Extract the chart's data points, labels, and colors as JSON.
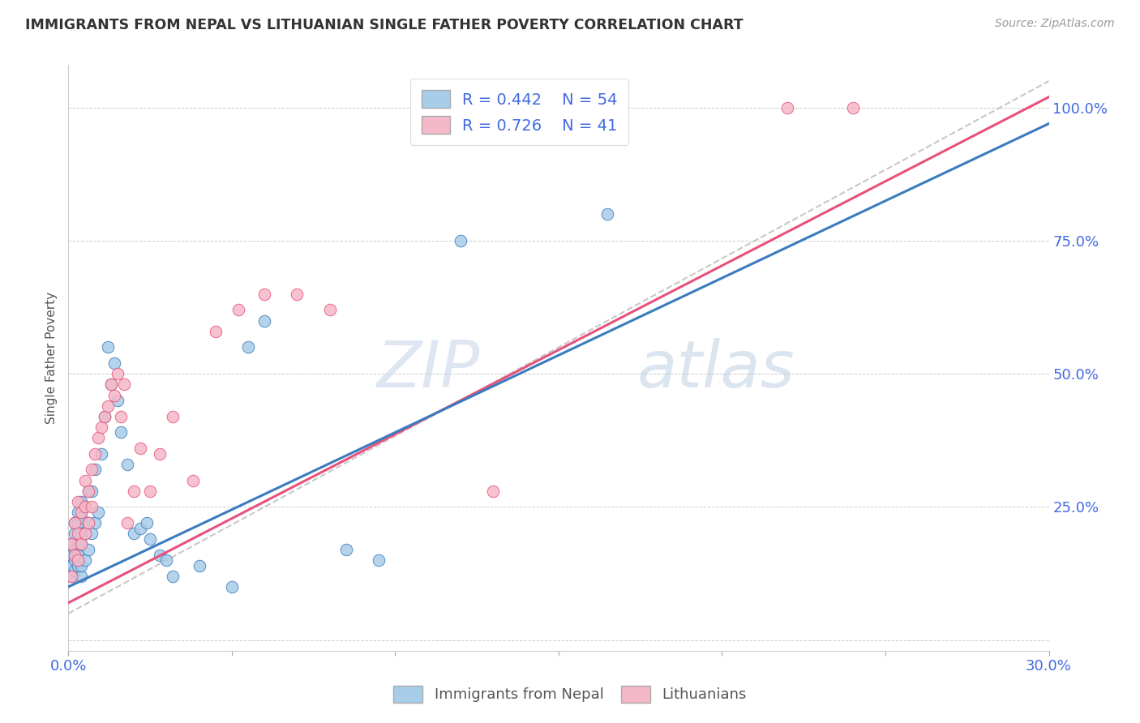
{
  "title": "IMMIGRANTS FROM NEPAL VS LITHUANIAN SINGLE FATHER POVERTY CORRELATION CHART",
  "source": "Source: ZipAtlas.com",
  "ylabel_label": "Single Father Poverty",
  "x_min": 0.0,
  "x_max": 0.3,
  "y_min": 0.0,
  "y_max": 1.0,
  "x_ticks": [
    0.0,
    0.05,
    0.1,
    0.15,
    0.2,
    0.25,
    0.3
  ],
  "x_tick_labels_show": [
    "0.0%",
    "",
    "",
    "",
    "",
    "",
    "30.0%"
  ],
  "y_ticks": [
    0.0,
    0.25,
    0.5,
    0.75,
    1.0
  ],
  "y_tick_labels_right": [
    "",
    "25.0%",
    "50.0%",
    "75.0%",
    "100.0%"
  ],
  "legend_r1": "R = 0.442",
  "legend_n1": "N = 54",
  "legend_r2": "R = 0.726",
  "legend_n2": "N = 41",
  "color_blue": "#a8cde8",
  "color_pink": "#f5b8c8",
  "color_blue_line": "#3a7bbf",
  "color_pink_line": "#e8517a",
  "color_dashed": "#bbbbbb",
  "color_axis_labels": "#4169e1",
  "watermark_zip": "ZIP",
  "watermark_atlas": "atlas",
  "nepal_x": [
    0.001,
    0.001,
    0.001,
    0.001,
    0.002,
    0.002,
    0.002,
    0.002,
    0.002,
    0.003,
    0.003,
    0.003,
    0.003,
    0.003,
    0.004,
    0.004,
    0.004,
    0.004,
    0.004,
    0.004,
    0.005,
    0.005,
    0.005,
    0.006,
    0.006,
    0.006,
    0.007,
    0.007,
    0.008,
    0.008,
    0.009,
    0.01,
    0.011,
    0.012,
    0.013,
    0.014,
    0.015,
    0.016,
    0.018,
    0.02,
    0.022,
    0.024,
    0.025,
    0.028,
    0.03,
    0.032,
    0.04,
    0.05,
    0.055,
    0.06,
    0.085,
    0.095,
    0.12,
    0.165
  ],
  "nepal_y": [
    0.12,
    0.14,
    0.16,
    0.18,
    0.13,
    0.15,
    0.17,
    0.2,
    0.22,
    0.14,
    0.16,
    0.18,
    0.22,
    0.24,
    0.12,
    0.14,
    0.18,
    0.2,
    0.23,
    0.26,
    0.15,
    0.2,
    0.25,
    0.17,
    0.22,
    0.28,
    0.2,
    0.28,
    0.22,
    0.32,
    0.24,
    0.35,
    0.42,
    0.55,
    0.48,
    0.52,
    0.45,
    0.39,
    0.33,
    0.2,
    0.21,
    0.22,
    0.19,
    0.16,
    0.15,
    0.12,
    0.14,
    0.1,
    0.55,
    0.6,
    0.17,
    0.15,
    0.75,
    0.8
  ],
  "lith_x": [
    0.001,
    0.001,
    0.002,
    0.002,
    0.003,
    0.003,
    0.003,
    0.004,
    0.004,
    0.005,
    0.005,
    0.005,
    0.006,
    0.006,
    0.007,
    0.007,
    0.008,
    0.009,
    0.01,
    0.011,
    0.012,
    0.013,
    0.014,
    0.015,
    0.016,
    0.017,
    0.018,
    0.02,
    0.022,
    0.025,
    0.028,
    0.032,
    0.038,
    0.045,
    0.052,
    0.06,
    0.07,
    0.08,
    0.13,
    0.22,
    0.24
  ],
  "lith_y": [
    0.12,
    0.18,
    0.16,
    0.22,
    0.15,
    0.2,
    0.26,
    0.18,
    0.24,
    0.2,
    0.25,
    0.3,
    0.22,
    0.28,
    0.25,
    0.32,
    0.35,
    0.38,
    0.4,
    0.42,
    0.44,
    0.48,
    0.46,
    0.5,
    0.42,
    0.48,
    0.22,
    0.28,
    0.36,
    0.28,
    0.35,
    0.42,
    0.3,
    0.58,
    0.62,
    0.65,
    0.65,
    0.62,
    0.28,
    1.0,
    1.0
  ]
}
